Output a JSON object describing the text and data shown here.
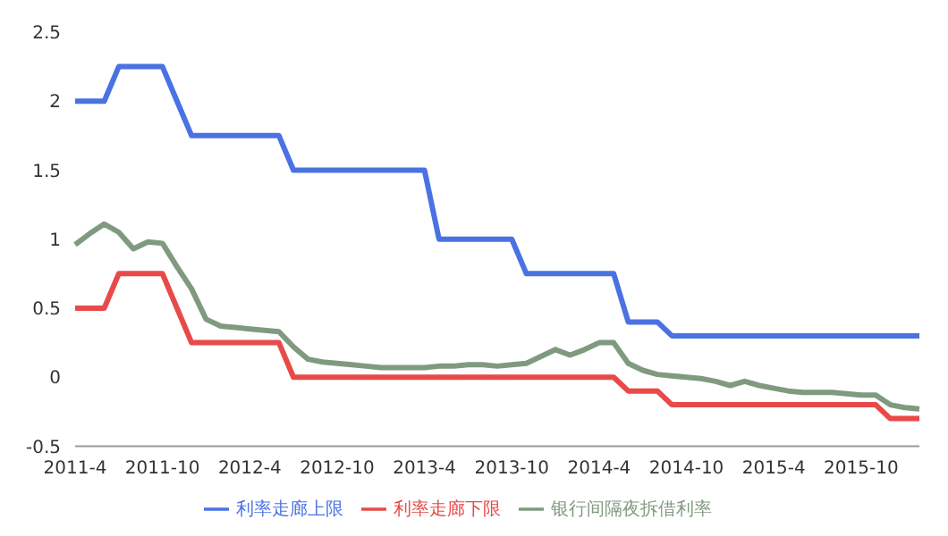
{
  "chart_data": {
    "type": "line",
    "categories": [
      "2011-4",
      null,
      null,
      null,
      null,
      null,
      "2011-10",
      null,
      null,
      null,
      null,
      null,
      "2012-4",
      null,
      null,
      null,
      null,
      null,
      "2012-10",
      null,
      null,
      null,
      null,
      null,
      "2013-4",
      null,
      null,
      null,
      null,
      null,
      "2013-10",
      null,
      null,
      null,
      null,
      null,
      "2014-4",
      null,
      null,
      null,
      null,
      null,
      "2014-10",
      null,
      null,
      null,
      null,
      null,
      "2015-4",
      null,
      null,
      null,
      null,
      null,
      "2015-10",
      null,
      null,
      null,
      null
    ],
    "series": [
      {
        "name": "利率走廊下限",
        "color": "#e84a4a",
        "values": [
          0.5,
          0.5,
          0.5,
          0.75,
          0.75,
          0.75,
          0.75,
          0.5,
          0.25,
          0.25,
          0.25,
          0.25,
          0.25,
          0.25,
          0.25,
          0,
          0,
          0,
          0,
          0,
          0,
          0,
          0,
          0,
          0,
          0,
          0,
          0,
          0,
          0,
          0,
          0,
          0,
          0,
          0,
          0,
          0,
          0,
          -0.1,
          -0.1,
          -0.1,
          -0.2,
          -0.2,
          -0.2,
          -0.2,
          -0.2,
          -0.2,
          -0.2,
          -0.2,
          -0.2,
          -0.2,
          -0.2,
          -0.2,
          -0.2,
          -0.2,
          -0.2,
          -0.3,
          -0.3,
          -0.3
        ]
      },
      {
        "name": "银行间隔夜拆借利率",
        "color": "#809a80",
        "values": [
          0.96,
          1.04,
          1.11,
          1.05,
          0.93,
          0.98,
          0.97,
          0.8,
          0.64,
          0.42,
          0.37,
          0.36,
          0.35,
          0.34,
          0.33,
          0.22,
          0.13,
          0.11,
          0.1,
          0.09,
          0.08,
          0.07,
          0.07,
          0.07,
          0.07,
          0.08,
          0.08,
          0.09,
          0.09,
          0.08,
          0.09,
          0.1,
          0.15,
          0.2,
          0.16,
          0.2,
          0.25,
          0.25,
          0.1,
          0.05,
          0.02,
          0.01,
          0,
          -0.01,
          -0.03,
          -0.06,
          -0.03,
          -0.06,
          -0.08,
          -0.1,
          -0.11,
          -0.11,
          -0.11,
          -0.12,
          -0.13,
          -0.13,
          -0.2,
          -0.22,
          -0.23
        ]
      },
      {
        "name": "利率走廊上限",
        "color": "#4a72e3",
        "values": [
          2,
          2,
          2,
          2.25,
          2.25,
          2.25,
          2.25,
          2,
          1.75,
          1.75,
          1.75,
          1.75,
          1.75,
          1.75,
          1.75,
          1.5,
          1.5,
          1.5,
          1.5,
          1.5,
          1.5,
          1.5,
          1.5,
          1.5,
          1.5,
          1,
          1,
          1,
          1,
          1,
          1,
          0.75,
          0.75,
          0.75,
          0.75,
          0.75,
          0.75,
          0.75,
          0.4,
          0.4,
          0.4,
          0.3,
          0.3,
          0.3,
          0.3,
          0.3,
          0.3,
          0.3,
          0.3,
          0.3,
          0.3,
          0.3,
          0.3,
          0.3,
          0.3,
          0.3,
          0.3,
          0.3,
          0.3
        ]
      }
    ],
    "ylim": [
      -0.5,
      2.5
    ],
    "yticks": [
      -0.5,
      0,
      0.5,
      1,
      1.5,
      2,
      2.5
    ],
    "grid": false,
    "legend": "bottom",
    "marker": "none",
    "line_style": "solid"
  }
}
